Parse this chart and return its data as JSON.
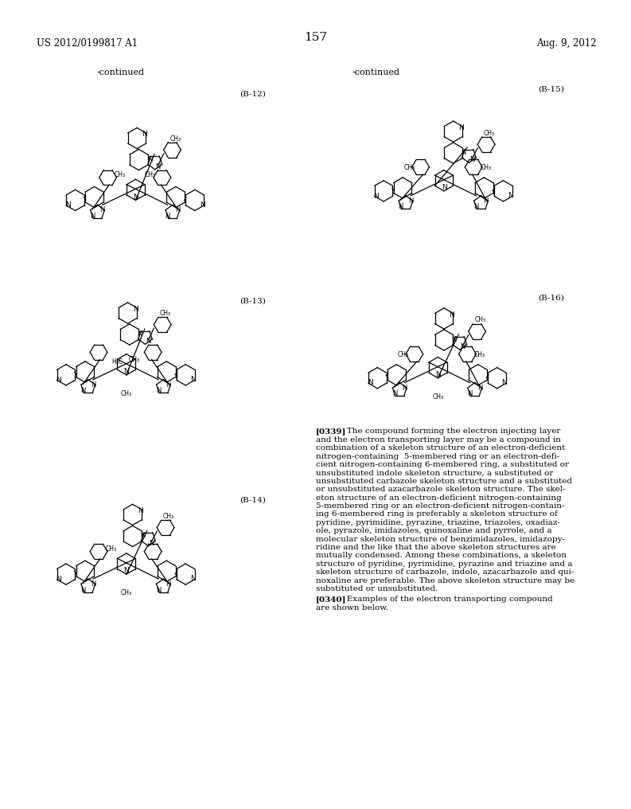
{
  "page_number": "157",
  "patent_number": "US 2012/0199817 A1",
  "patent_date": "Aug. 9, 2012",
  "background_color": "#ffffff",
  "text_color": "#000000",
  "continued_left": "-continued",
  "continued_right": "-continued",
  "label_B12": "(B-12)",
  "label_B13": "(B-13)",
  "label_B14": "(B-14)",
  "label_B15": "(B-15)",
  "label_B16": "(B-16)",
  "p339_label": "[0339]",
  "p339_body": "The compound forming the electron injecting layer and the electron transporting layer may be a compound in combination of a skeleton structure of an electron-deficient nitrogen-containing 5-membered ring or an electron-deficient nitrogen-containing 6-membered ring, a substituted or unsubstituted indole skeleton structure, a substituted or unsubstituted carbazole skeleton structure and a substituted or unsubstituted azacarbazole skeleton structure. The skeleton structure of an electron-deficient nitrogen-containing 5-membered ring or an electron-deficient nitrogen-containing 6-membered ring is preferably a skeleton structure of pyridine, pyrimidine, pyrazine, triazine, triazoles, oxadiaz-ole, pyrazole, imidazoles, quinoxaline and pyrrole, and a molecular skeleton structure of benzimidazoles, imidazopy-ridine and the like that the above skeleton structures are mutually condensed. Among these combinations, a skeleton structure of pyridine, pyrimidine, pyrazine and triazine and a skeleton structure of carbazole, indole, azacarbazole and qui-noxaline are preferable. The above skeleton structure may be substituted or unsubstituted.",
  "p340_label": "[0340]",
  "p340_body": "Examples of the electron transporting compound are shown below."
}
